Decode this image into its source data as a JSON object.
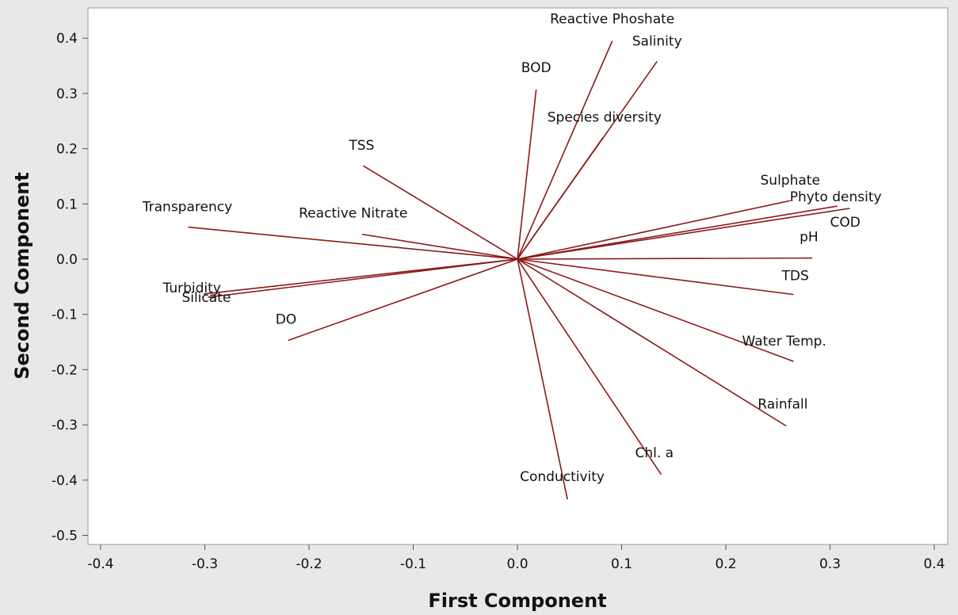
{
  "chart_data": {
    "type": "biplot",
    "xlabel": "First Component",
    "ylabel": "Second Component",
    "xlim": [
      -0.4,
      0.4
    ],
    "ylim": [
      -0.5,
      0.4
    ],
    "x_ticks": [
      "-0.4",
      "-0.3",
      "-0.2",
      "-0.1",
      "0.0",
      "0.1",
      "0.2",
      "0.3",
      "0.4"
    ],
    "y_ticks": [
      "0.4",
      "0.3",
      "0.2",
      "0.1",
      "0.0",
      "-0.1",
      "-0.2",
      "-0.3",
      "-0.4",
      "-0.5"
    ],
    "line_color": "#8b1a1a",
    "grid": false,
    "vectors": [
      {
        "name": "Reactive Phoshate",
        "x": 0.091,
        "y": 0.395
      },
      {
        "name": "Salinity",
        "x": 0.134,
        "y": 0.358
      },
      {
        "name": "BOD",
        "x": 0.018,
        "y": 0.307
      },
      {
        "name": "Species diversity",
        "x": 0.082,
        "y": 0.22
      },
      {
        "name": "TSS",
        "x": -0.148,
        "y": 0.169
      },
      {
        "name": "Sulphate",
        "x": 0.262,
        "y": 0.106
      },
      {
        "name": "Phyto density",
        "x": 0.307,
        "y": 0.096
      },
      {
        "name": "COD",
        "x": 0.319,
        "y": 0.092
      },
      {
        "name": "Transparency",
        "x": -0.316,
        "y": 0.058
      },
      {
        "name": "Reactive Nitrate",
        "x": -0.149,
        "y": 0.045
      },
      {
        "name": "pH",
        "x": 0.283,
        "y": 0.002
      },
      {
        "name": "TDS",
        "x": 0.265,
        "y": -0.064
      },
      {
        "name": "Turbidity",
        "x": -0.301,
        "y": -0.063
      },
      {
        "name": "Silicate",
        "x": -0.297,
        "y": -0.069
      },
      {
        "name": "DO",
        "x": -0.22,
        "y": -0.147
      },
      {
        "name": "Water Temp.",
        "x": 0.265,
        "y": -0.185
      },
      {
        "name": "Rainfall",
        "x": 0.258,
        "y": -0.302
      },
      {
        "name": "Chl. a",
        "x": 0.138,
        "y": -0.39
      },
      {
        "name": "Conductivity",
        "x": 0.048,
        "y": -0.435
      }
    ]
  }
}
